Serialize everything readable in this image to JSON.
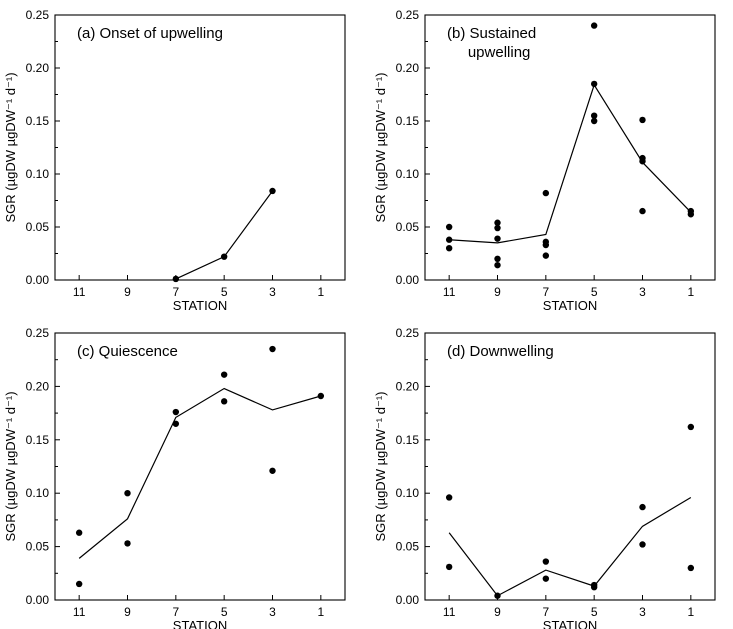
{
  "chart_data": [
    {
      "type": "scatter",
      "title": "(a) Onset of upwelling",
      "xlabel": "STATION",
      "ylabel": "SGR (µgDW µgDW⁻¹ d⁻¹)",
      "x_ticks": [
        11,
        9,
        7,
        5,
        3,
        1
      ],
      "y_ticks": [
        "0.00",
        "0.05",
        "0.10",
        "0.15",
        "0.20",
        "0.25"
      ],
      "xlim": [
        12,
        0
      ],
      "ylim": [
        0,
        0.25
      ],
      "x_reversed": true,
      "points": [
        {
          "x": 7,
          "y": 0.001
        },
        {
          "x": 5,
          "y": 0.022
        },
        {
          "x": 3,
          "y": 0.084
        }
      ],
      "mean_line": {
        "x": [
          7,
          5,
          3
        ],
        "y": [
          0.001,
          0.022,
          0.084
        ]
      }
    },
    {
      "type": "scatter",
      "title": "(b) Sustained\nupwelling",
      "xlabel": "STATION",
      "ylabel": "SGR (µgDW µgDW⁻¹ d⁻¹)",
      "x_ticks": [
        11,
        9,
        7,
        5,
        3,
        1
      ],
      "y_ticks": [
        "0.00",
        "0.05",
        "0.10",
        "0.15",
        "0.20",
        "0.25"
      ],
      "xlim": [
        12,
        0
      ],
      "ylim": [
        0,
        0.25
      ],
      "x_reversed": true,
      "points": [
        {
          "x": 11,
          "y": 0.05
        },
        {
          "x": 11,
          "y": 0.038
        },
        {
          "x": 11,
          "y": 0.03
        },
        {
          "x": 9,
          "y": 0.054
        },
        {
          "x": 9,
          "y": 0.049
        },
        {
          "x": 9,
          "y": 0.039
        },
        {
          "x": 9,
          "y": 0.02
        },
        {
          "x": 9,
          "y": 0.014
        },
        {
          "x": 7,
          "y": 0.082
        },
        {
          "x": 7,
          "y": 0.036
        },
        {
          "x": 7,
          "y": 0.033
        },
        {
          "x": 7,
          "y": 0.023
        },
        {
          "x": 5,
          "y": 0.24
        },
        {
          "x": 5,
          "y": 0.185
        },
        {
          "x": 5,
          "y": 0.155
        },
        {
          "x": 5,
          "y": 0.15
        },
        {
          "x": 3,
          "y": 0.151
        },
        {
          "x": 3,
          "y": 0.115
        },
        {
          "x": 3,
          "y": 0.112
        },
        {
          "x": 3,
          "y": 0.065
        },
        {
          "x": 1,
          "y": 0.065
        },
        {
          "x": 1,
          "y": 0.062
        }
      ],
      "mean_line": {
        "x": [
          11,
          9,
          7,
          5,
          3,
          1
        ],
        "y": [
          0.038,
          0.035,
          0.043,
          0.184,
          0.111,
          0.064
        ]
      }
    },
    {
      "type": "scatter",
      "title": "(c) Quiescence",
      "xlabel": "STATION",
      "ylabel": "SGR (µgDW µgDW⁻¹ d⁻¹)",
      "x_ticks": [
        11,
        9,
        7,
        5,
        3,
        1
      ],
      "y_ticks": [
        "0.00",
        "0.05",
        "0.10",
        "0.15",
        "0.20",
        "0.25"
      ],
      "xlim": [
        12,
        0
      ],
      "ylim": [
        0,
        0.25
      ],
      "x_reversed": true,
      "points": [
        {
          "x": 11,
          "y": 0.063
        },
        {
          "x": 11,
          "y": 0.015
        },
        {
          "x": 9,
          "y": 0.1
        },
        {
          "x": 9,
          "y": 0.053
        },
        {
          "x": 7,
          "y": 0.176
        },
        {
          "x": 7,
          "y": 0.165
        },
        {
          "x": 5,
          "y": 0.211
        },
        {
          "x": 5,
          "y": 0.186
        },
        {
          "x": 3,
          "y": 0.235
        },
        {
          "x": 3,
          "y": 0.121
        },
        {
          "x": 1,
          "y": 0.191
        }
      ],
      "mean_line": {
        "x": [
          11,
          9,
          7,
          5,
          3,
          1
        ],
        "y": [
          0.039,
          0.076,
          0.171,
          0.198,
          0.178,
          0.191
        ]
      }
    },
    {
      "type": "scatter",
      "title": "(d) Downwelling",
      "xlabel": "STATION",
      "ylabel": "SGR (µgDW µgDW⁻¹ d⁻¹)",
      "x_ticks": [
        11,
        9,
        7,
        5,
        3,
        1
      ],
      "y_ticks": [
        "0.00",
        "0.05",
        "0.10",
        "0.15",
        "0.20",
        "0.25"
      ],
      "xlim": [
        12,
        0
      ],
      "ylim": [
        0,
        0.25
      ],
      "x_reversed": true,
      "points": [
        {
          "x": 11,
          "y": 0.096
        },
        {
          "x": 11,
          "y": 0.031
        },
        {
          "x": 9,
          "y": 0.004
        },
        {
          "x": 7,
          "y": 0.036
        },
        {
          "x": 7,
          "y": 0.02
        },
        {
          "x": 5,
          "y": 0.014
        },
        {
          "x": 5,
          "y": 0.012
        },
        {
          "x": 3,
          "y": 0.087
        },
        {
          "x": 3,
          "y": 0.052
        },
        {
          "x": 1,
          "y": 0.162
        },
        {
          "x": 1,
          "y": 0.03
        }
      ],
      "mean_line": {
        "x": [
          11,
          9,
          7,
          5,
          3,
          1
        ],
        "y": [
          0.063,
          0.004,
          0.028,
          0.013,
          0.069,
          0.096
        ]
      }
    }
  ]
}
